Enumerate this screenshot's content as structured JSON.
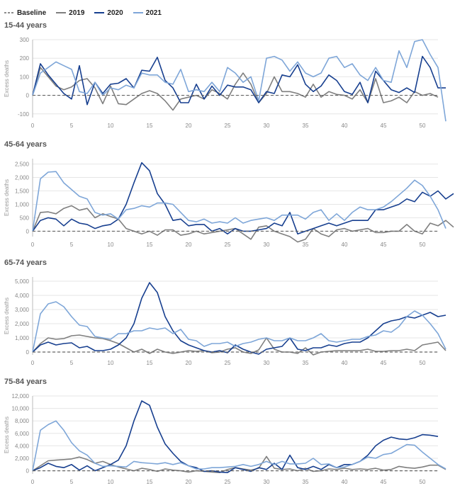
{
  "legend": [
    {
      "label": "Baseline",
      "key": "baseline"
    },
    {
      "label": "2019",
      "key": "y2019"
    },
    {
      "label": "2020",
      "key": "y2020"
    },
    {
      "label": "2021",
      "key": "y2021"
    }
  ],
  "colors": {
    "baseline": "#666666",
    "y2019": "#7f7f7f",
    "y2020": "#173f8f",
    "y2021": "#7ea6d8",
    "grid": "#e6e6e6"
  },
  "chart_data": [
    {
      "type": "line",
      "title": "15-44 years",
      "ylabel": "Excess deaths",
      "xlim": [
        0,
        52
      ],
      "ylim": [
        -120,
        300
      ],
      "xticks": [
        0,
        5,
        10,
        15,
        20,
        25,
        30,
        35,
        40,
        45,
        50
      ],
      "yticks": [
        -100,
        0,
        100,
        200,
        300
      ],
      "ytick_labels": [
        "-100",
        "0",
        "100",
        "200",
        "300"
      ],
      "series": [
        {
          "name": "2019",
          "key": "y2019",
          "values": [
            0,
            150,
            100,
            50,
            30,
            45,
            80,
            90,
            40,
            -45,
            50,
            -45,
            -50,
            -20,
            10,
            25,
            10,
            -30,
            -80,
            -20,
            -10,
            0,
            -20,
            30,
            10,
            -20,
            60,
            120,
            60,
            -40,
            10,
            100,
            20,
            20,
            10,
            -10,
            60,
            -10,
            20,
            5,
            0,
            -20,
            30,
            -40,
            90,
            -40,
            -30,
            -10,
            -40,
            20,
            0,
            10,
            -10
          ]
        },
        {
          "name": "2020",
          "key": "y2020",
          "values": [
            0,
            170,
            110,
            60,
            10,
            -20,
            160,
            -50,
            70,
            10,
            60,
            65,
            90,
            40,
            135,
            130,
            205,
            80,
            40,
            -40,
            -40,
            60,
            -20,
            50,
            0,
            55,
            45,
            45,
            30,
            -40,
            20,
            10,
            110,
            100,
            165,
            60,
            20,
            50,
            110,
            80,
            20,
            5,
            70,
            -40,
            130,
            80,
            30,
            15,
            40,
            15,
            210,
            150,
            40,
            40
          ]
        },
        {
          "name": "2021",
          "key": "y2021",
          "values": [
            0,
            120,
            150,
            180,
            160,
            140,
            20,
            10,
            70,
            0,
            40,
            30,
            55,
            40,
            120,
            110,
            110,
            70,
            60,
            140,
            20,
            30,
            20,
            70,
            20,
            150,
            120,
            70,
            100,
            -30,
            200,
            210,
            190,
            130,
            180,
            120,
            100,
            120,
            200,
            210,
            150,
            170,
            110,
            80,
            150,
            80,
            70,
            240,
            150,
            290,
            300,
            220,
            150,
            -140
          ]
        }
      ]
    },
    {
      "type": "line",
      "title": "45-64 years",
      "ylabel": "Excess deaths",
      "xlim": [
        0,
        52
      ],
      "ylim": [
        -200,
        2700
      ],
      "xticks": [
        0,
        5,
        10,
        15,
        20,
        25,
        30,
        35,
        40,
        45,
        50
      ],
      "yticks": [
        0,
        500,
        1000,
        1500,
        2000,
        2500
      ],
      "ytick_labels": [
        "0",
        "500",
        "1,000",
        "1,500",
        "2,000",
        "2,500"
      ],
      "series": [
        {
          "name": "2019",
          "key": "y2019",
          "values": [
            0,
            700,
            720,
            650,
            850,
            950,
            780,
            850,
            500,
            650,
            550,
            450,
            100,
            0,
            -100,
            0,
            -150,
            50,
            50,
            -150,
            -100,
            0,
            -100,
            -50,
            0,
            50,
            100,
            -100,
            -300,
            150,
            200,
            0,
            -100,
            -200,
            -400,
            -300,
            100,
            -100,
            -200,
            50,
            100,
            0,
            50,
            100,
            -50,
            -50,
            0,
            0,
            250,
            0,
            -100,
            300,
            200,
            400,
            150
          ]
        },
        {
          "name": "2020",
          "key": "y2020",
          "values": [
            0,
            400,
            500,
            450,
            200,
            450,
            300,
            250,
            100,
            200,
            250,
            450,
            1000,
            1800,
            2550,
            2250,
            1400,
            1000,
            400,
            450,
            200,
            250,
            250,
            0,
            100,
            -100,
            100,
            0,
            0,
            50,
            100,
            300,
            200,
            700,
            -100,
            0,
            100,
            200,
            300,
            200,
            300,
            400,
            400,
            400,
            800,
            800,
            900,
            1000,
            1200,
            1100,
            1450,
            1300,
            1500,
            1200,
            1400
          ]
        },
        {
          "name": "2021",
          "key": "y2021",
          "values": [
            0,
            1950,
            2200,
            2220,
            1800,
            1550,
            1300,
            1200,
            700,
            600,
            650,
            450,
            800,
            850,
            950,
            900,
            1050,
            1050,
            1000,
            700,
            400,
            350,
            450,
            300,
            350,
            300,
            500,
            300,
            400,
            450,
            500,
            400,
            600,
            600,
            600,
            450,
            700,
            800,
            400,
            650,
            400,
            700,
            900,
            800,
            800,
            900,
            1100,
            1350,
            1600,
            1900,
            1700,
            1300,
            800,
            100
          ]
        }
      ]
    },
    {
      "type": "line",
      "title": "65-74 years",
      "ylabel": "Excess deaths",
      "xlim": [
        0,
        52
      ],
      "ylim": [
        -200,
        5300
      ],
      "xticks": [
        0,
        5,
        10,
        15,
        20,
        25,
        30,
        35,
        40,
        45,
        50
      ],
      "yticks": [
        0,
        1000,
        2000,
        3000,
        4000,
        5000
      ],
      "ytick_labels": [
        "0",
        "1,000",
        "2,000",
        "3,000",
        "4,000",
        "5,000"
      ],
      "series": [
        {
          "name": "2019",
          "key": "y2019",
          "values": [
            0,
            600,
            1000,
            900,
            950,
            1150,
            1200,
            1100,
            1000,
            950,
            800,
            600,
            300,
            0,
            200,
            -100,
            200,
            0,
            -100,
            0,
            100,
            50,
            100,
            -50,
            0,
            200,
            300,
            0,
            -100,
            150,
            1000,
            200,
            0,
            0,
            -100,
            300,
            -200,
            0,
            50,
            100,
            100,
            100,
            100,
            200,
            50,
            50,
            100,
            100,
            200,
            100,
            500,
            600,
            700,
            100
          ]
        },
        {
          "name": "2020",
          "key": "y2020",
          "values": [
            0,
            500,
            700,
            500,
            600,
            650,
            300,
            400,
            100,
            100,
            200,
            500,
            1000,
            2000,
            3800,
            4900,
            4200,
            2500,
            1500,
            800,
            500,
            300,
            100,
            0,
            100,
            -50,
            500,
            200,
            0,
            -150,
            200,
            300,
            400,
            1000,
            200,
            100,
            300,
            300,
            500,
            400,
            600,
            700,
            700,
            1000,
            1500,
            2000,
            2200,
            2300,
            2500,
            2400,
            2600,
            2800,
            2500,
            2600
          ]
        },
        {
          "name": "2021",
          "key": "y2021",
          "values": [
            0,
            2700,
            3400,
            3550,
            3200,
            2500,
            1900,
            1800,
            1100,
            1000,
            900,
            1300,
            1300,
            1500,
            1500,
            1700,
            1600,
            1700,
            1300,
            1600,
            900,
            800,
            400,
            600,
            600,
            700,
            400,
            600,
            700,
            900,
            1000,
            800,
            800,
            1000,
            800,
            800,
            1000,
            1300,
            800,
            700,
            800,
            900,
            900,
            1100,
            1200,
            1500,
            1400,
            1800,
            2500,
            2900,
            2600,
            2000,
            1300,
            200
          ]
        }
      ]
    },
    {
      "type": "line",
      "title": "75-84 years",
      "ylabel": "Excess deaths",
      "xlim": [
        0,
        52
      ],
      "ylim": [
        -500,
        12000
      ],
      "xticks": [
        0,
        5,
        10,
        15,
        20,
        25,
        30,
        35,
        40,
        45,
        50
      ],
      "yticks": [
        0,
        2000,
        4000,
        6000,
        8000,
        10000,
        12000
      ],
      "ytick_labels": [
        "0",
        "2,000",
        "4,000",
        "6,000",
        "8,000",
        "10,000",
        "12,000"
      ],
      "series": [
        {
          "name": "2019",
          "key": "y2019",
          "values": [
            0,
            800,
            1600,
            1700,
            1800,
            1900,
            2200,
            1800,
            1200,
            1500,
            1000,
            600,
            300,
            0,
            400,
            200,
            -100,
            300,
            100,
            0,
            -200,
            0,
            -100,
            -200,
            -300,
            200,
            500,
            300,
            100,
            400,
            2300,
            400,
            200,
            300,
            0,
            400,
            -100,
            0,
            300,
            200,
            400,
            200,
            300,
            200,
            400,
            100,
            200,
            700,
            500,
            400,
            600,
            900,
            900,
            200
          ]
        },
        {
          "name": "2020",
          "key": "y2020",
          "values": [
            0,
            500,
            1200,
            700,
            500,
            1000,
            100,
            800,
            0,
            500,
            1000,
            1700,
            4000,
            8000,
            11200,
            10500,
            7000,
            4300,
            2800,
            1500,
            800,
            500,
            -100,
            0,
            -200,
            -300,
            500,
            200,
            -100,
            500,
            200,
            1200,
            200,
            2500,
            500,
            200,
            700,
            200,
            1000,
            500,
            1000,
            1000,
            1500,
            2500,
            4000,
            4900,
            5400,
            5100,
            5000,
            5300,
            5800,
            5700,
            5500
          ]
        },
        {
          "name": "2021",
          "key": "y2021",
          "values": [
            0,
            6500,
            7400,
            8000,
            6500,
            4500,
            3200,
            2500,
            1200,
            700,
            800,
            700,
            600,
            1500,
            1300,
            1200,
            1100,
            1300,
            1000,
            1300,
            800,
            300,
            300,
            500,
            500,
            600,
            700,
            1000,
            700,
            1000,
            1500,
            1000,
            1500,
            1100,
            1100,
            1200,
            2000,
            1000,
            1100,
            500,
            600,
            1000,
            1500,
            2200,
            2000,
            2600,
            2800,
            3500,
            4200,
            4100,
            3000,
            2000,
            1000,
            300
          ]
        }
      ]
    }
  ]
}
